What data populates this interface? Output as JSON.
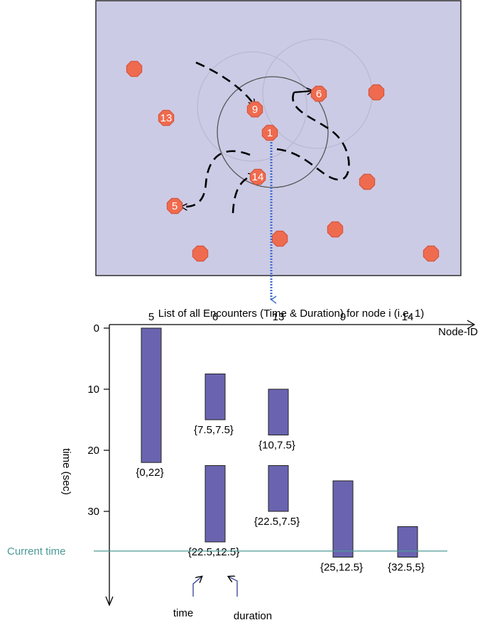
{
  "colors": {
    "field_bg": "#cccbe6",
    "node_fill": "#ef6b4f",
    "bar_fill": "#6a64b0",
    "current_time": "#4c9a96",
    "trace_blue": "#3f6ccc"
  },
  "field": {
    "nodes": [
      {
        "id": "n-a",
        "label": ""
      },
      {
        "id": "n-9",
        "label": "9"
      },
      {
        "id": "n-13",
        "label": "13"
      },
      {
        "id": "n-6",
        "label": "6"
      },
      {
        "id": "n-b",
        "label": ""
      },
      {
        "id": "n-1",
        "label": "1"
      },
      {
        "id": "n-14",
        "label": "14"
      },
      {
        "id": "n-c",
        "label": ""
      },
      {
        "id": "n-5",
        "label": "5"
      },
      {
        "id": "n-d",
        "label": ""
      },
      {
        "id": "n-e",
        "label": ""
      },
      {
        "id": "n-f",
        "label": ""
      },
      {
        "id": "n-g",
        "label": ""
      }
    ]
  },
  "encounters": {
    "title": "List of all Encounters (Time & Duration) for node i (i.e. 1)",
    "x_axis_label": "Node-ID",
    "y_axis_label": "time (sec)",
    "current_time_label": "Current time",
    "time_note": "time",
    "duration_note": "duration"
  },
  "chart_data": {
    "type": "bar",
    "categories": [
      "5",
      "6",
      "13",
      "9",
      "14"
    ],
    "y_ticks": [
      0,
      10,
      20,
      30
    ],
    "ylim": [
      0,
      40
    ],
    "current_time": 36.5,
    "intervals": [
      {
        "node": "5",
        "start": 0,
        "duration": 22,
        "label": "{0,22}"
      },
      {
        "node": "6",
        "start": 7.5,
        "duration": 7.5,
        "label": "{7.5,7.5}"
      },
      {
        "node": "6",
        "start": 22.5,
        "duration": 12.5,
        "label": "{22.5,12.5}"
      },
      {
        "node": "13",
        "start": 10,
        "duration": 7.5,
        "label": "{10,7.5}"
      },
      {
        "node": "13",
        "start": 22.5,
        "duration": 7.5,
        "label": "{22.5,7.5}"
      },
      {
        "node": "9",
        "start": 25,
        "duration": 12.5,
        "label": "{25,12.5}"
      },
      {
        "node": "14",
        "start": 32.5,
        "duration": 5,
        "label": "{32.5,5}"
      }
    ]
  }
}
